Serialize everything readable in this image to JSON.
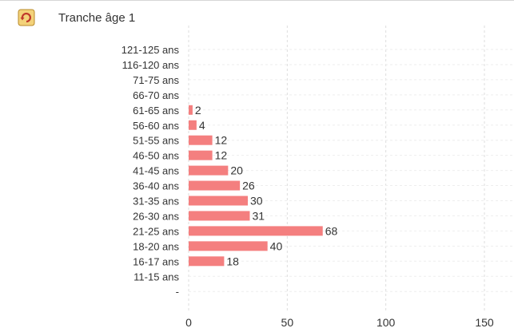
{
  "header": {
    "title": "Tranche âge 1",
    "refresh_icon": "refresh-icon"
  },
  "colors": {
    "bar": "#f47f7f",
    "grid": "#dddddd",
    "axis_text": "#333333"
  },
  "chart_data": {
    "type": "bar",
    "orientation": "horizontal",
    "title": "Tranche âge 1",
    "categories": [
      "121-125 ans",
      "116-120 ans",
      "71-75 ans",
      "66-70 ans",
      "61-65 ans",
      "56-60 ans",
      "51-55 ans",
      "46-50 ans",
      "41-45 ans",
      "36-40 ans",
      "31-35 ans",
      "26-30 ans",
      "21-25 ans",
      "18-20 ans",
      "16-17 ans",
      "11-15 ans",
      "-"
    ],
    "values": [
      null,
      null,
      null,
      null,
      2,
      4,
      12,
      12,
      20,
      26,
      30,
      31,
      68,
      40,
      18,
      null,
      null
    ],
    "value_labels": [
      "",
      "",
      "",
      "",
      "2",
      "4",
      "12",
      "12",
      "20",
      "26",
      "30",
      "31",
      "68",
      "40",
      "18",
      "",
      ""
    ],
    "x_ticks": [
      0,
      50,
      100,
      150
    ],
    "x_tick_labels": [
      "0",
      "50",
      "100",
      "150"
    ],
    "xlim": [
      0,
      165
    ],
    "xlabel": "",
    "ylabel": "",
    "grid": true,
    "legend": "none"
  }
}
